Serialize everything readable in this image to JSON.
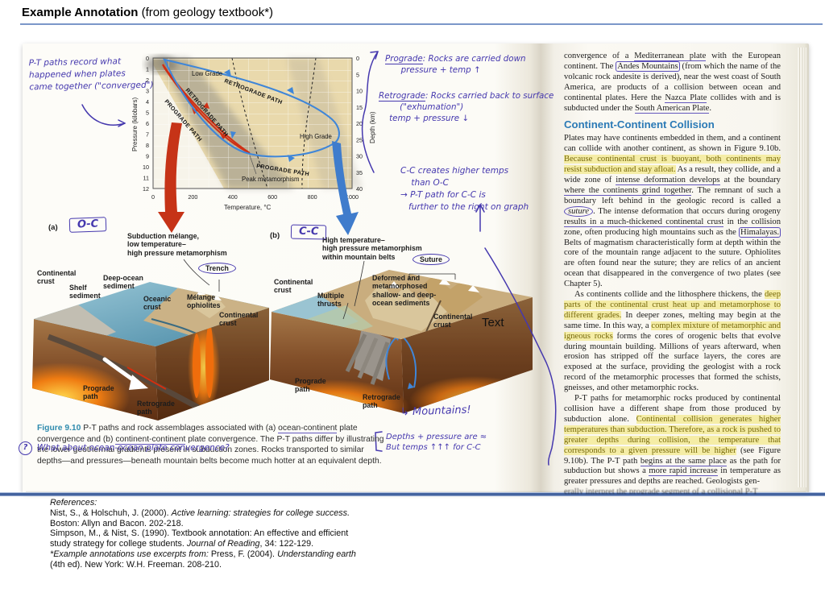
{
  "header": {
    "title_bold": "Example Annotation",
    "title_rest": " (from geology textbook*)"
  },
  "graph": {
    "ylabel_left": "Pressure (kilobars)",
    "ylabel_right": "Depth (km)",
    "xlabel": "Temperature, °C",
    "pressure_ticks": [
      "0",
      "1",
      "2",
      "3",
      "4",
      "5",
      "6",
      "7",
      "8",
      "9",
      "10",
      "11",
      "12"
    ],
    "depth_ticks": [
      "0",
      "5",
      "10",
      "15",
      "20",
      "25",
      "30",
      "35",
      "40"
    ],
    "temp_ticks": [
      "0",
      "200",
      "400",
      "600",
      "800",
      "1000"
    ],
    "low_grade": "Low Grade",
    "high_grade": "High Grade",
    "peak": "Peak metamorphism",
    "red_prograde": "PROGRADE PATH",
    "red_retrograde": "RETROGRADE PATH",
    "blue_prograde": "PROGRADE PATH",
    "blue_retrograde": "RETROGRADE PATH"
  },
  "hand": {
    "pt_note": "P-T paths record what\nhappened when plates\ncame together (\"converged\")",
    "prograde_term": "Prograde",
    "prograde_body": ": Rocks are carried down\n      pressure + temp ↑",
    "retrograde_term": "Retrograde",
    "retrograde_body": ": Rocks carried back to surface\n        (\"exhumation\")\n    temp + pressure ↓",
    "cc_note": "C-C creates higher temps\n    than O-C\n→ P-T path for C-C is\n   further to the right on graph",
    "oc_box": "O-C",
    "cc_box": "C-C",
    "mountains": "↳ Mountains!",
    "depths_note": "Depths + pressure are ≈\nBut temps ↑↑↑ for C-C",
    "question_mark": "?",
    "question": "What about ocean-ocean plate convergence?"
  },
  "figure_a": {
    "tag": "(a)",
    "top_label": "Subduction mélange,\nlow temperature–\nhigh pressure metamorphism",
    "trench": "Trench",
    "cont_crust_left": "Continental\ncrust",
    "shelf_sediment": "Shelf\nsediment",
    "deep_ocean_sediment": "Deep-ocean\nsediment",
    "oceanic_crust": "Oceanic\ncrust",
    "melange_ophiolites": "Mélange\nophiolites",
    "cont_crust_right": "Continental\ncrust",
    "prograde_path": "Prograde\npath",
    "retrograde_path": "Retrograde\npath"
  },
  "figure_b": {
    "tag": "(b)",
    "top_label": "High temperature–\nhigh pressure metamorphism\nwithin mountain belts",
    "suture": "Suture",
    "cont_crust_left": "Continental\ncrust",
    "multiple_thrusts": "Multiple\nthrusts",
    "deformed": "Deformed and\nmetamorphosed\nshallow- and deep-\nocean sediments",
    "cont_crust_right": "Continental\ncrust",
    "text_artifact": "Text",
    "prograde_path": "Prograde\npath",
    "retrograde_path": "Retrograde\npath"
  },
  "caption": {
    "segments": [
      {
        "t": "Figure 9.10",
        "s": "figno"
      },
      {
        "t": "  P-T paths and rock assemblages associated with (a) "
      },
      {
        "t": "ocean-continent",
        "s": "upen"
      },
      {
        "t": " plate convergence and (b) "
      },
      {
        "t": "continent-continent",
        "s": "upen"
      },
      {
        "t": " plate convergence. The P-T paths differ by illustrating the lower geothermal gradients present in subduction zones. Rocks transported to similar depths—and pressures—beneath mountain belts become much hotter at an equivalent depth."
      }
    ]
  },
  "right_page": {
    "p1": [
      {
        "t": "convergence of a "
      },
      {
        "t": "Mediterranean plate",
        "s": "upen"
      },
      {
        "t": " with the European continent. The "
      },
      {
        "t": "Andes Mountains",
        "s": "box"
      },
      {
        "t": " (from which the name of the volcanic rock andesite is derived), near the west coast of South America, are products of a collision between ocean and continental plates. Here the "
      },
      {
        "t": "Nazca Plate",
        "s": "upen"
      },
      {
        "t": " collides with and is subducted under the "
      },
      {
        "t": "South American Plate",
        "s": "upen"
      },
      {
        "t": "."
      }
    ],
    "heading": "Continent-Continent Collision",
    "p2": [
      {
        "t": "Plates may have continents embedded in them, and a continent can collide with another continent, as shown in Figure 9.10b. "
      },
      {
        "t": "Because continental crust is buoyant, both continents may resist subduction and stay afloat.",
        "s": "hl"
      },
      {
        "t": " As a result, they collide, and a wide zone of "
      },
      {
        "t": "intense deformation develops",
        "s": "upen"
      },
      {
        "t": " at the boundary "
      },
      {
        "t": "where the continents grind together",
        "s": "upen"
      },
      {
        "t": ". The remnant of such a boundary left behind in the geologic record is called a "
      },
      {
        "t": "suture",
        "s": "circ i"
      },
      {
        "t": ". The intense deformation that occurs during orogeny "
      },
      {
        "t": "results in a much-thickened continental crust",
        "s": "upen"
      },
      {
        "t": " in the collision zone, often producing high mountains such as the "
      },
      {
        "t": "Himalayas.",
        "s": "box"
      },
      {
        "t": " Belts of magmatism characteristically form at depth within the core of the mountain range adjacent to the suture. Ophiolites are often found near the suture; they are relics of an ancient ocean that disappeared in the convergence of two plates (see Chapter 5)."
      }
    ],
    "p3": [
      {
        "t": "As continents collide and the lithosphere thickens, the "
      },
      {
        "t": "deep parts of the continental crust heat up and metamorphose to different grades.",
        "s": "hl"
      },
      {
        "t": " In deeper zones, melting may begin at the same time. In this way, a "
      },
      {
        "t": "complex mixture of metamorphic and igneous rocks",
        "s": "hl"
      },
      {
        "t": " forms the cores of orogenic belts that evolve during mountain building. Millions of years afterward, when erosion has stripped off the surface layers, the cores are exposed at the surface, providing the geologist with a rock record of the metamorphic processes that formed the schists, gneisses, and other metamorphic rocks."
      }
    ],
    "p4": [
      {
        "t": "P-T paths for metamorphic rocks produced by continental collision have a different shape from those produced by subduction alone. "
      },
      {
        "t": "Continental collision generates higher temperatures than subduction. Therefore, as a rock is pushed to greater depths during collision, the temperature that corresponds to a given pressure will be higher",
        "s": "hl"
      },
      {
        "t": " (see Figure 9.10b). The P-T path "
      },
      {
        "t": "begins at the same place",
        "s": "upen"
      },
      {
        "t": " as the path for subduction but shows a "
      },
      {
        "t": "more rapid increase",
        "s": "upen"
      },
      {
        "t": " in temperature as greater pressures and depths are reached. Geologists gen-"
      }
    ],
    "cut_line": "erally interpret the prograde segment of a collisional P-T"
  },
  "references": {
    "lines": [
      [
        {
          "t": "References:",
          "s": "i"
        }
      ],
      [
        {
          "t": "Nist, S., & Holschuh, J. (2000). "
        },
        {
          "t": "Active learning: strategies for college success.",
          "s": "i"
        }
      ],
      [
        {
          "t": "Boston: Allyn and Bacon. 202-218."
        }
      ],
      [
        {
          "t": "Simpson, M., & Nist, S. (1990). Textbook annotation: An effective and efficient"
        }
      ],
      [
        {
          "t": "study strategy for college students. "
        },
        {
          "t": "Journal of Reading",
          "s": "i"
        },
        {
          "t": ", 34: 122-129."
        }
      ],
      [
        {
          "t": "*Example annotations use excerpts from:",
          "s": "i"
        },
        {
          "t": " Press, F. (2004). "
        },
        {
          "t": "Understanding earth",
          "s": "i"
        }
      ],
      [
        {
          "t": "(4th ed). New York: W.H. Freeman. 208-210."
        }
      ]
    ]
  },
  "colors": {
    "pen": "#4538ae",
    "highlight": "#f5eda6",
    "heading_blue": "#2b7ab6",
    "divider_blue": "#44639f"
  }
}
